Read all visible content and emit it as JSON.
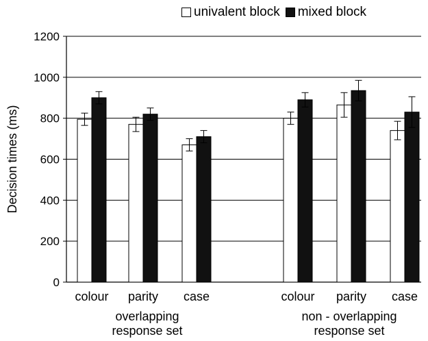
{
  "chart_data": {
    "type": "bar",
    "ylabel": "Decision times (ms)",
    "ylim": [
      0,
      1200
    ],
    "yticks": [
      0,
      200,
      400,
      600,
      800,
      1000,
      1200
    ],
    "grid": true,
    "legend_position": "top",
    "categories": [
      "colour",
      "parity",
      "case",
      "colour",
      "parity",
      "case"
    ],
    "groups": [
      {
        "label_line1": "overlapping",
        "label_line2": "response set",
        "categories": [
          "colour",
          "parity",
          "case"
        ]
      },
      {
        "label_line1": "non - overlapping",
        "label_line2": "response set",
        "categories": [
          "colour",
          "parity",
          "case"
        ]
      }
    ],
    "series": [
      {
        "name": "univalent block",
        "color": "#ffffff",
        "values": [
          795,
          770,
          670,
          800,
          865,
          740
        ],
        "errors": [
          30,
          35,
          30,
          30,
          60,
          45
        ]
      },
      {
        "name": "mixed block",
        "color": "#111111",
        "values": [
          900,
          820,
          710,
          890,
          935,
          830
        ],
        "errors": [
          30,
          30,
          30,
          35,
          50,
          75
        ]
      }
    ]
  }
}
